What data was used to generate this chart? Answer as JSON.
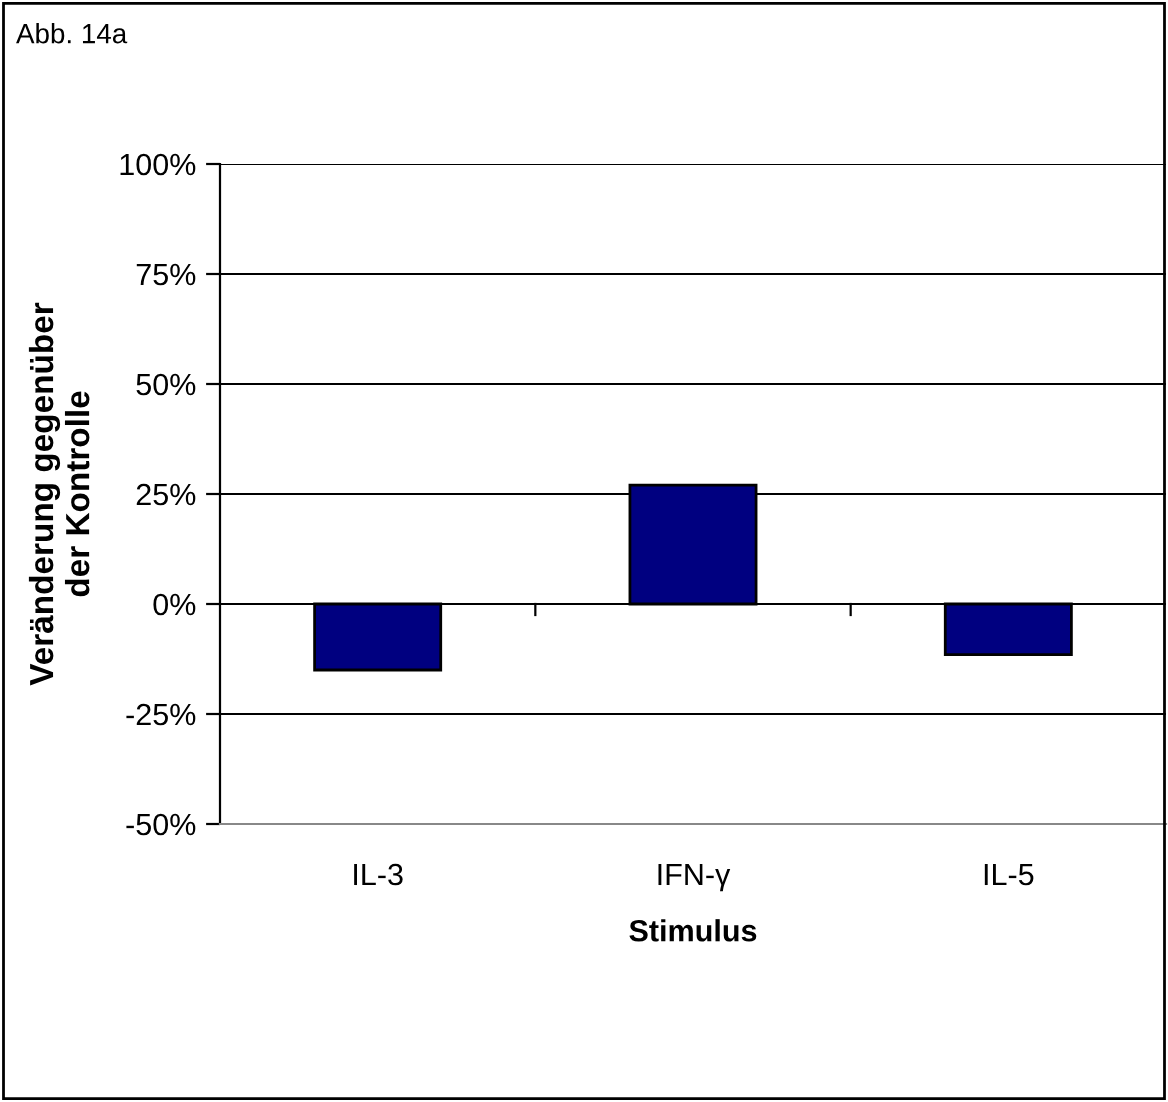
{
  "chart_data": {
    "type": "bar",
    "title": "Abb. 14a",
    "xlabel": "Stimulus",
    "ylabel": "Veränderung gegenüber\nder Kontrolle",
    "categories": [
      "IL-3",
      "IFN-γ",
      "IL-5"
    ],
    "values": [
      -15,
      27,
      -11.5
    ],
    "color": "#000080",
    "ylim": [
      -50,
      100
    ],
    "yticks": [
      {
        "value": -50,
        "label": "-50%"
      },
      {
        "value": -25,
        "label": "-25%"
      },
      {
        "value": 0,
        "label": "0%"
      },
      {
        "value": 25,
        "label": "25%"
      },
      {
        "value": 50,
        "label": "50%"
      },
      {
        "value": 75,
        "label": "75%"
      },
      {
        "value": 100,
        "label": "100%"
      }
    ],
    "grid": "y",
    "legend": false
  }
}
